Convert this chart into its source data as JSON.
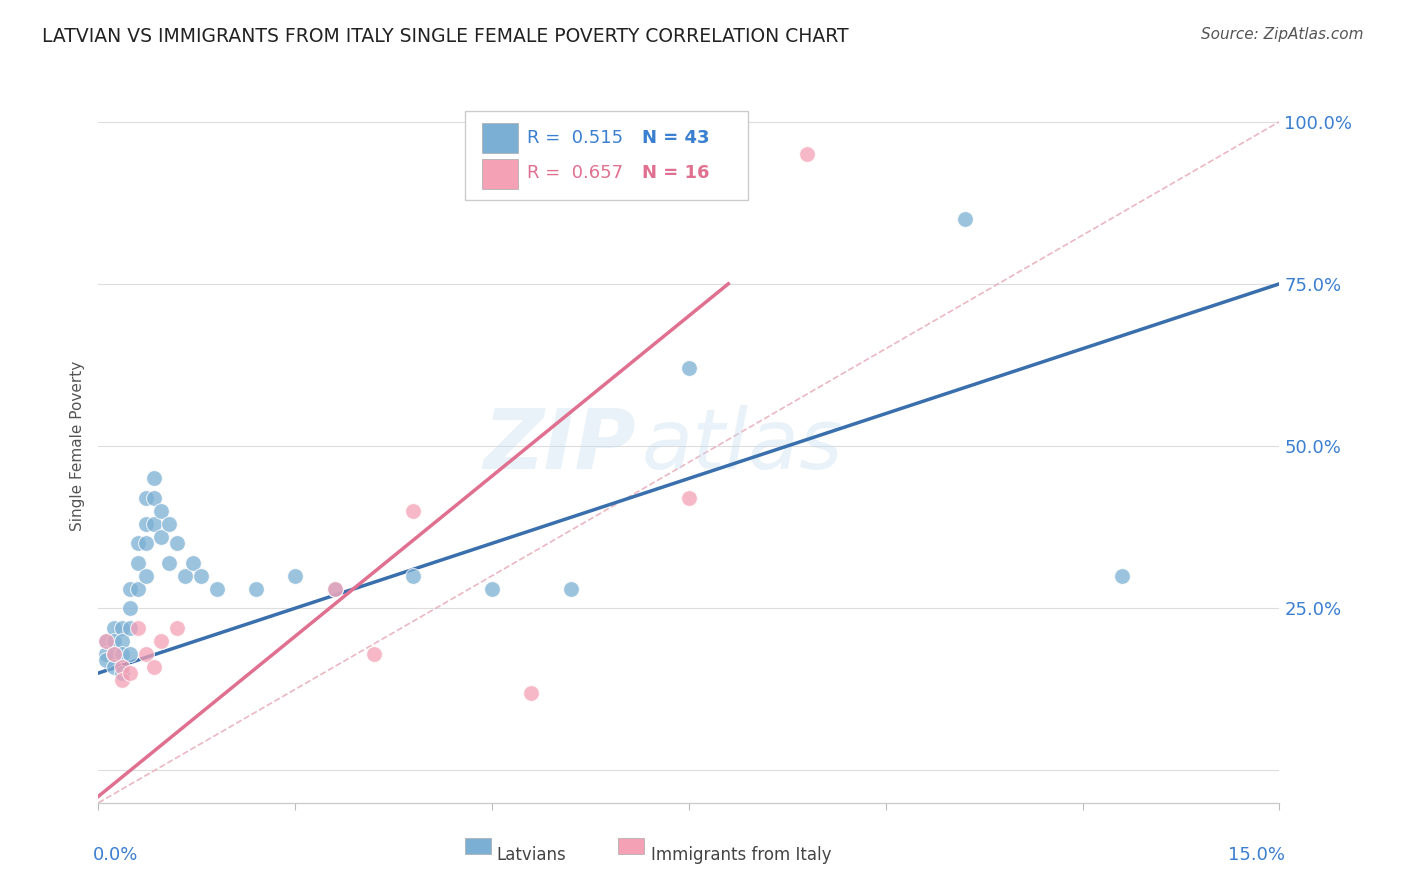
{
  "title": "LATVIAN VS IMMIGRANTS FROM ITALY SINGLE FEMALE POVERTY CORRELATION CHART",
  "source": "Source: ZipAtlas.com",
  "ylabel": "Single Female Poverty",
  "latvian_color": "#7bafd4",
  "italy_color": "#f4a0b5",
  "blue_line_color": "#3a6fad",
  "pink_line_color": "#e07090",
  "dashed_line_color": "#e8b0bc",
  "legend_r1": "R = 0.515",
  "legend_n1": "N = 43",
  "legend_r2": "R = 0.657",
  "legend_n2": "N = 16",
  "blue_text_color": "#3a7fd0",
  "pink_text_color": "#e07090",
  "xlim": [
    0.0,
    0.15
  ],
  "ylim": [
    -0.05,
    1.05
  ],
  "blue_line_x0": 0.0,
  "blue_line_y0": 0.15,
  "blue_line_x1": 0.15,
  "blue_line_y1": 0.75,
  "pink_line_x0": 0.0,
  "pink_line_y0": -0.04,
  "pink_line_x1": 0.08,
  "pink_line_y1": 0.75,
  "latvian_x": [
    0.001,
    0.001,
    0.001,
    0.002,
    0.002,
    0.002,
    0.002,
    0.003,
    0.003,
    0.003,
    0.003,
    0.004,
    0.004,
    0.004,
    0.004,
    0.005,
    0.005,
    0.005,
    0.006,
    0.006,
    0.006,
    0.006,
    0.007,
    0.007,
    0.007,
    0.008,
    0.008,
    0.009,
    0.009,
    0.01,
    0.011,
    0.012,
    0.013,
    0.015,
    0.02,
    0.025,
    0.03,
    0.04,
    0.05,
    0.06,
    0.075,
    0.11,
    0.13
  ],
  "latvian_y": [
    0.2,
    0.18,
    0.17,
    0.22,
    0.2,
    0.18,
    0.16,
    0.22,
    0.2,
    0.18,
    0.15,
    0.28,
    0.25,
    0.22,
    0.18,
    0.35,
    0.32,
    0.28,
    0.42,
    0.38,
    0.35,
    0.3,
    0.45,
    0.42,
    0.38,
    0.4,
    0.36,
    0.38,
    0.32,
    0.35,
    0.3,
    0.32,
    0.3,
    0.28,
    0.28,
    0.3,
    0.28,
    0.3,
    0.28,
    0.28,
    0.62,
    0.85,
    0.3
  ],
  "italy_x": [
    0.001,
    0.002,
    0.003,
    0.003,
    0.004,
    0.005,
    0.006,
    0.007,
    0.008,
    0.01,
    0.03,
    0.035,
    0.04,
    0.055,
    0.075,
    0.09
  ],
  "italy_y": [
    0.2,
    0.18,
    0.16,
    0.14,
    0.15,
    0.22,
    0.18,
    0.16,
    0.2,
    0.22,
    0.28,
    0.18,
    0.4,
    0.12,
    0.42,
    0.95
  ]
}
